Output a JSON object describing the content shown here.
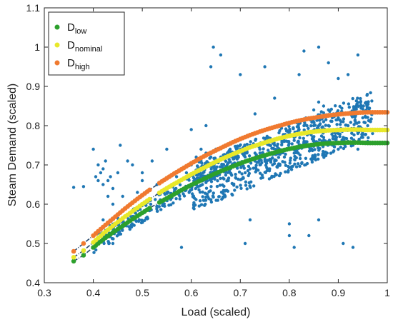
{
  "chart_data": {
    "type": "scatter",
    "title": "",
    "xlabel": "Load (scaled)",
    "ylabel": "Steam Demand (scaled)",
    "xlim": [
      0.3,
      1.0
    ],
    "ylim": [
      0.4,
      1.1
    ],
    "xticks": [
      "0.3",
      "0.4",
      "0.5",
      "0.6",
      "0.7",
      "0.8",
      "0.9",
      "1"
    ],
    "yticks": [
      "0.4",
      "0.5",
      "0.6",
      "0.7",
      "0.8",
      "0.9",
      "1",
      "1.1"
    ],
    "grid": false,
    "legend_position": "top-left",
    "scatter_color": "#1f77b4",
    "series": [
      {
        "name": "D",
        "subscript": "low",
        "color": "#2ca02c",
        "points": [
          [
            0.36,
            0.455
          ],
          [
            0.38,
            0.47
          ],
          [
            0.4,
            0.49
          ],
          [
            0.42,
            0.51
          ],
          [
            0.44,
            0.528
          ],
          [
            0.46,
            0.545
          ],
          [
            0.48,
            0.562
          ],
          [
            0.5,
            0.578
          ],
          [
            0.52,
            0.594
          ],
          [
            0.54,
            0.608
          ],
          [
            0.56,
            0.622
          ],
          [
            0.58,
            0.636
          ],
          [
            0.6,
            0.649
          ],
          [
            0.62,
            0.661
          ],
          [
            0.64,
            0.673
          ],
          [
            0.66,
            0.684
          ],
          [
            0.68,
            0.694
          ],
          [
            0.7,
            0.704
          ],
          [
            0.72,
            0.713
          ],
          [
            0.74,
            0.721
          ],
          [
            0.76,
            0.728
          ],
          [
            0.78,
            0.735
          ],
          [
            0.8,
            0.741
          ],
          [
            0.82,
            0.746
          ],
          [
            0.84,
            0.75
          ],
          [
            0.86,
            0.753
          ],
          [
            0.88,
            0.755
          ],
          [
            0.9,
            0.756
          ],
          [
            0.92,
            0.757
          ],
          [
            0.94,
            0.757
          ],
          [
            0.96,
            0.756
          ],
          [
            0.98,
            0.756
          ],
          [
            1.0,
            0.756
          ]
        ]
      },
      {
        "name": "D",
        "subscript": "nominal",
        "color": "#e8e82a",
        "points": [
          [
            0.36,
            0.465
          ],
          [
            0.38,
            0.482
          ],
          [
            0.4,
            0.503
          ],
          [
            0.42,
            0.525
          ],
          [
            0.44,
            0.545
          ],
          [
            0.46,
            0.564
          ],
          [
            0.48,
            0.582
          ],
          [
            0.5,
            0.6
          ],
          [
            0.52,
            0.617
          ],
          [
            0.54,
            0.633
          ],
          [
            0.56,
            0.648
          ],
          [
            0.58,
            0.662
          ],
          [
            0.6,
            0.676
          ],
          [
            0.62,
            0.689
          ],
          [
            0.64,
            0.702
          ],
          [
            0.66,
            0.714
          ],
          [
            0.68,
            0.725
          ],
          [
            0.7,
            0.735
          ],
          [
            0.72,
            0.745
          ],
          [
            0.74,
            0.753
          ],
          [
            0.76,
            0.761
          ],
          [
            0.78,
            0.768
          ],
          [
            0.8,
            0.774
          ],
          [
            0.82,
            0.779
          ],
          [
            0.84,
            0.783
          ],
          [
            0.86,
            0.786
          ],
          [
            0.88,
            0.788
          ],
          [
            0.9,
            0.789
          ],
          [
            0.92,
            0.79
          ],
          [
            0.94,
            0.79
          ],
          [
            0.96,
            0.789
          ],
          [
            0.98,
            0.789
          ],
          [
            1.0,
            0.789
          ]
        ]
      },
      {
        "name": "D",
        "subscript": "high",
        "color": "#f07a30",
        "points": [
          [
            0.36,
            0.48
          ],
          [
            0.38,
            0.5
          ],
          [
            0.4,
            0.52
          ],
          [
            0.42,
            0.542
          ],
          [
            0.44,
            0.563
          ],
          [
            0.46,
            0.584
          ],
          [
            0.48,
            0.604
          ],
          [
            0.5,
            0.623
          ],
          [
            0.52,
            0.641
          ],
          [
            0.54,
            0.658
          ],
          [
            0.56,
            0.674
          ],
          [
            0.58,
            0.689
          ],
          [
            0.6,
            0.704
          ],
          [
            0.62,
            0.718
          ],
          [
            0.64,
            0.731
          ],
          [
            0.66,
            0.743
          ],
          [
            0.68,
            0.755
          ],
          [
            0.7,
            0.766
          ],
          [
            0.72,
            0.776
          ],
          [
            0.74,
            0.785
          ],
          [
            0.76,
            0.793
          ],
          [
            0.78,
            0.8
          ],
          [
            0.8,
            0.807
          ],
          [
            0.82,
            0.813
          ],
          [
            0.84,
            0.818
          ],
          [
            0.86,
            0.822
          ],
          [
            0.88,
            0.826
          ],
          [
            0.9,
            0.829
          ],
          [
            0.92,
            0.831
          ],
          [
            0.94,
            0.833
          ],
          [
            0.96,
            0.834
          ],
          [
            0.98,
            0.834
          ],
          [
            1.0,
            0.834
          ]
        ]
      }
    ],
    "scatter_points": [
      [
        0.36,
        0.643
      ],
      [
        0.38,
        0.645
      ],
      [
        0.4,
        0.74
      ],
      [
        0.405,
        0.67
      ],
      [
        0.41,
        0.7
      ],
      [
        0.41,
        0.66
      ],
      [
        0.415,
        0.68
      ],
      [
        0.42,
        0.65
      ],
      [
        0.42,
        0.69
      ],
      [
        0.425,
        0.71
      ],
      [
        0.43,
        0.66
      ],
      [
        0.43,
        0.62
      ],
      [
        0.435,
        0.67
      ],
      [
        0.44,
        0.64
      ],
      [
        0.44,
        0.6
      ],
      [
        0.45,
        0.68
      ],
      [
        0.455,
        0.75
      ],
      [
        0.46,
        0.62
      ],
      [
        0.47,
        0.71
      ],
      [
        0.48,
        0.7
      ],
      [
        0.49,
        0.63
      ],
      [
        0.5,
        0.68
      ],
      [
        0.5,
        0.66
      ],
      [
        0.52,
        0.71
      ],
      [
        0.55,
        0.74
      ],
      [
        0.42,
        0.56
      ],
      [
        0.44,
        0.5
      ],
      [
        0.45,
        0.53
      ],
      [
        0.48,
        0.58
      ],
      [
        0.5,
        0.6
      ],
      [
        0.53,
        0.65
      ],
      [
        0.55,
        0.64
      ],
      [
        0.56,
        0.65
      ],
      [
        0.57,
        0.67
      ],
      [
        0.58,
        0.49
      ],
      [
        0.58,
        0.69
      ],
      [
        0.59,
        0.68
      ],
      [
        0.6,
        0.7
      ],
      [
        0.6,
        0.79
      ],
      [
        0.61,
        0.72
      ],
      [
        0.62,
        0.71
      ],
      [
        0.62,
        0.74
      ],
      [
        0.63,
        0.73
      ],
      [
        0.63,
        0.8
      ],
      [
        0.64,
        0.72
      ],
      [
        0.64,
        0.95
      ],
      [
        0.645,
        1.0
      ],
      [
        0.65,
        0.74
      ],
      [
        0.65,
        0.69
      ],
      [
        0.66,
        0.72
      ],
      [
        0.66,
        0.98
      ],
      [
        0.67,
        0.71
      ],
      [
        0.67,
        0.75
      ],
      [
        0.68,
        0.73
      ],
      [
        0.68,
        0.69
      ],
      [
        0.69,
        0.72
      ],
      [
        0.69,
        0.76
      ],
      [
        0.7,
        0.7
      ],
      [
        0.7,
        0.74
      ],
      [
        0.7,
        0.93
      ],
      [
        0.71,
        0.72
      ],
      [
        0.71,
        0.68
      ],
      [
        0.71,
        0.5
      ],
      [
        0.72,
        0.75
      ],
      [
        0.72,
        0.69
      ],
      [
        0.72,
        0.56
      ],
      [
        0.73,
        0.73
      ],
      [
        0.73,
        0.71
      ],
      [
        0.73,
        0.83
      ],
      [
        0.74,
        0.74
      ],
      [
        0.74,
        0.7
      ],
      [
        0.75,
        0.76
      ],
      [
        0.75,
        0.72
      ],
      [
        0.75,
        0.95
      ],
      [
        0.76,
        0.73
      ],
      [
        0.76,
        0.69
      ],
      [
        0.77,
        0.75
      ],
      [
        0.77,
        0.71
      ],
      [
        0.77,
        0.87
      ],
      [
        0.78,
        0.74
      ],
      [
        0.78,
        0.7
      ],
      [
        0.78,
        0.8
      ],
      [
        0.79,
        0.76
      ],
      [
        0.79,
        0.72
      ],
      [
        0.8,
        0.78
      ],
      [
        0.8,
        0.74
      ],
      [
        0.8,
        0.55
      ],
      [
        0.8,
        0.52
      ],
      [
        0.81,
        0.77
      ],
      [
        0.81,
        0.73
      ],
      [
        0.81,
        0.49
      ],
      [
        0.82,
        0.79
      ],
      [
        0.82,
        0.75
      ],
      [
        0.82,
        0.93
      ],
      [
        0.83,
        0.8
      ],
      [
        0.83,
        0.76
      ],
      [
        0.83,
        0.99
      ],
      [
        0.84,
        0.82
      ],
      [
        0.84,
        0.78
      ],
      [
        0.84,
        0.52
      ],
      [
        0.85,
        0.84
      ],
      [
        0.85,
        0.8
      ],
      [
        0.85,
        0.76
      ],
      [
        0.86,
        0.86
      ],
      [
        0.86,
        0.82
      ],
      [
        0.86,
        0.56
      ],
      [
        0.86,
        1.0
      ],
      [
        0.87,
        0.85
      ],
      [
        0.87,
        0.81
      ],
      [
        0.87,
        0.77
      ],
      [
        0.88,
        0.84
      ],
      [
        0.88,
        0.8
      ],
      [
        0.88,
        0.96
      ],
      [
        0.89,
        0.83
      ],
      [
        0.89,
        0.79
      ],
      [
        0.9,
        0.82
      ],
      [
        0.9,
        0.78
      ],
      [
        0.9,
        0.74
      ],
      [
        0.9,
        0.92
      ],
      [
        0.91,
        0.81
      ],
      [
        0.91,
        0.77
      ],
      [
        0.91,
        0.5
      ],
      [
        0.92,
        0.8
      ],
      [
        0.92,
        0.76
      ],
      [
        0.92,
        0.93
      ],
      [
        0.93,
        0.79
      ],
      [
        0.93,
        0.75
      ],
      [
        0.93,
        0.49
      ],
      [
        0.94,
        0.78
      ],
      [
        0.94,
        0.74
      ],
      [
        0.94,
        0.98
      ],
      [
        0.95,
        0.77
      ],
      [
        0.95,
        0.82
      ],
      [
        0.96,
        0.76
      ],
      [
        0.96,
        0.8
      ],
      [
        0.97,
        0.78
      ]
    ]
  }
}
